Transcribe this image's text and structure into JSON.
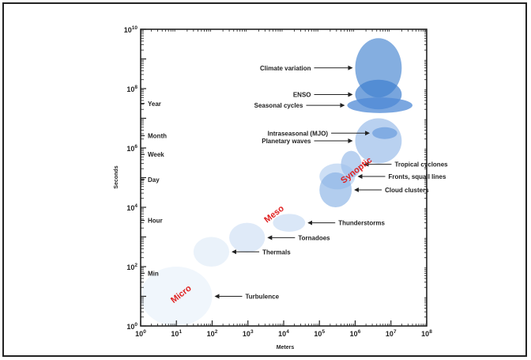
{
  "chart_data": {
    "type": "scatter",
    "title": "",
    "xlabel": "Meters",
    "ylabel": "Seconds",
    "x_scale": "log",
    "y_scale": "log",
    "xlim": [
      1,
      100000000
    ],
    "ylim": [
      1,
      10000000000
    ],
    "x_ticks": [
      {
        "value": 1,
        "label": "10^0"
      },
      {
        "value": 10,
        "label": "10^1"
      },
      {
        "value": 100,
        "label": "10^2"
      },
      {
        "value": 1000,
        "label": "10^3"
      },
      {
        "value": 10000,
        "label": "10^4"
      },
      {
        "value": 100000,
        "label": "10^5"
      },
      {
        "value": 1000000,
        "label": "10^6"
      },
      {
        "value": 10000000,
        "label": "10^7"
      },
      {
        "value": 100000000,
        "label": "10^8"
      }
    ],
    "y_ticks": [
      {
        "value": 1,
        "label": "10^0"
      },
      {
        "value": 100,
        "label": "10^2"
      },
      {
        "value": 10000,
        "label": "10^4"
      },
      {
        "value": 1000000,
        "label": "10^6"
      },
      {
        "value": 100000000,
        "label": "10^8"
      },
      {
        "value": 10000000000,
        "label": "10^10"
      }
    ],
    "time_periods": [
      {
        "label": "Year",
        "seconds": 31536000
      },
      {
        "label": "Month",
        "seconds": 2592000
      },
      {
        "label": "Week",
        "seconds": 604800
      },
      {
        "label": "Day",
        "seconds": 86400
      },
      {
        "label": "Hour",
        "seconds": 3600
      },
      {
        "label": "Min",
        "seconds": 60
      }
    ],
    "scale_labels": [
      {
        "label": "Micro",
        "x": 15,
        "y": 10
      },
      {
        "label": "Meso",
        "x": 6000,
        "y": 5000
      },
      {
        "label": "Synoptic",
        "x": 1200000,
        "y": 150000
      }
    ],
    "phenomena": [
      {
        "label": "Climate variation",
        "x_range": [
          1000000,
          20000000
        ],
        "y_range": [
          50000000,
          5000000000
        ]
      },
      {
        "label": "ENSO",
        "x_range": [
          1000000,
          20000000
        ],
        "y_range": [
          20000000,
          200000000
        ]
      },
      {
        "label": "Seasonal cycles",
        "x_range": [
          600000,
          40000000
        ],
        "y_range": [
          15000000,
          50000000
        ]
      },
      {
        "label": "Intraseasonal (MJO)",
        "x_range": [
          3000000,
          15000000
        ],
        "y_range": [
          2000000,
          5000000
        ]
      },
      {
        "label": "Planetary waves",
        "x_range": [
          1000000,
          20000000
        ],
        "y_range": [
          300000,
          10000000
        ]
      },
      {
        "label": "Tropical cyclones",
        "x_range": [
          400000,
          1500000
        ],
        "y_range": [
          100000,
          800000
        ]
      },
      {
        "label": "Fronts, squall lines",
        "x_range": [
          100000,
          1000000
        ],
        "y_range": [
          40000,
          300000
        ]
      },
      {
        "label": "Cloud clusters",
        "x_range": [
          100000,
          800000
        ],
        "y_range": [
          10000,
          150000
        ]
      },
      {
        "label": "Thunderstorms",
        "x_range": [
          5000,
          40000
        ],
        "y_range": [
          1500,
          6000
        ]
      },
      {
        "label": "Tornadoes",
        "x_range": [
          300,
          3000
        ],
        "y_range": [
          300,
          3000
        ]
      },
      {
        "label": "Thermals",
        "x_range": [
          30,
          300
        ],
        "y_range": [
          100,
          1000
        ]
      },
      {
        "label": "Turbulence",
        "x_range": [
          1,
          100
        ],
        "y_range": [
          1,
          100
        ]
      }
    ],
    "legend": "none",
    "grid": false
  }
}
